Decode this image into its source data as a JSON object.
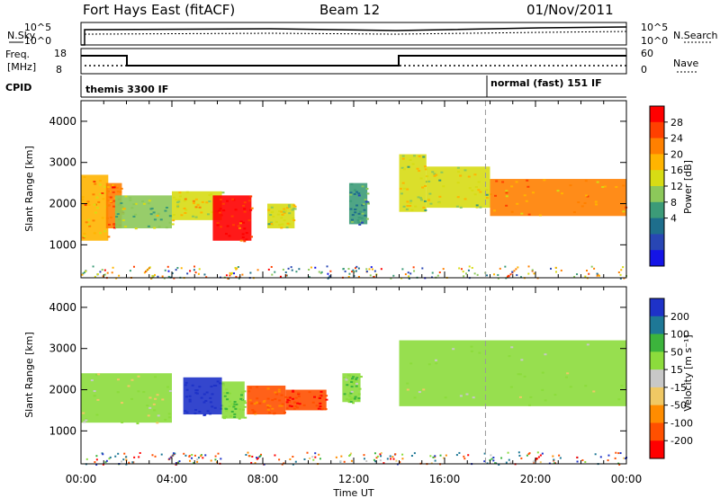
{
  "header": {
    "title": "Fort Hays East (fitACF)",
    "beam": "Beam 12",
    "date": "01/Nov/2011"
  },
  "panels": {
    "noise": {
      "left_label": "N.Sky",
      "right_label": "N.Search",
      "left_ticks": [
        "10^5",
        "10^0"
      ],
      "right_ticks": [
        "10^5",
        "10^0"
      ]
    },
    "freq": {
      "left_label_1": "Freq.",
      "left_label_2": "[MHz]",
      "right_label": "Nave",
      "left_ticks": [
        "18",
        "8"
      ],
      "right_ticks": [
        "60",
        "0"
      ]
    },
    "cpid": {
      "label": "CPID",
      "modes": [
        "themis 3300 IF",
        "normal (fast) 151 IF"
      ]
    }
  },
  "colorbars": {
    "power": {
      "title": "Power [dB]",
      "ticks": [
        "28",
        "24",
        "20",
        "16",
        "12",
        "8",
        "4"
      ],
      "colors": [
        "#ff0000",
        "#ff4000",
        "#ff8000",
        "#ffb400",
        "#d7dc14",
        "#8cc85a",
        "#3c9b78",
        "#1e6e8c",
        "#2846b4",
        "#1414e6"
      ]
    },
    "velocity": {
      "title": "Velocity [m s⁻¹]",
      "ticks": [
        "200",
        "100",
        "50",
        "15",
        "-15",
        "-50",
        "-100",
        "-200"
      ],
      "colors": [
        "#1e32c8",
        "#1e7896",
        "#3cb43c",
        "#8cdc3c",
        "#c8c8c8",
        "#f0c864",
        "#ff8c00",
        "#ff5000",
        "#ff0000"
      ]
    }
  },
  "chart_data": [
    {
      "type": "heatmap",
      "name": "power",
      "xlabel": "Time UT",
      "ylabel": "Slant Range [km]",
      "xlim": [
        0,
        24
      ],
      "ylim": [
        200,
        4500
      ],
      "yticks": [
        "1000",
        "2000",
        "3000",
        "4000"
      ],
      "xticks": [
        "00:00",
        "04:00",
        "08:00",
        "12:00",
        "16:00",
        "20:00",
        "00:00"
      ],
      "regions": [
        {
          "t0": 0.0,
          "t1": 1.2,
          "r0": 1100,
          "r1": 2700,
          "v": 20
        },
        {
          "t0": 1.1,
          "t1": 1.8,
          "r0": 1400,
          "r1": 2500,
          "v": 24
        },
        {
          "t0": 1.5,
          "t1": 4.0,
          "r0": 1400,
          "r1": 2200,
          "v": 14
        },
        {
          "t0": 4.0,
          "t1": 6.2,
          "r0": 1600,
          "r1": 2300,
          "v": 18
        },
        {
          "t0": 5.8,
          "t1": 7.5,
          "r0": 1100,
          "r1": 2200,
          "v": 28
        },
        {
          "t0": 8.2,
          "t1": 9.4,
          "r0": 1400,
          "r1": 2000,
          "v": 16
        },
        {
          "t0": 11.8,
          "t1": 12.6,
          "r0": 1500,
          "r1": 2500,
          "v": 10
        },
        {
          "t0": 14.0,
          "t1": 15.2,
          "r0": 1800,
          "r1": 3200,
          "v": 16
        },
        {
          "t0": 15.2,
          "t1": 18.0,
          "r0": 1900,
          "r1": 2900,
          "v": 16
        },
        {
          "t0": 18.0,
          "t1": 24.0,
          "r0": 1700,
          "r1": 2600,
          "v": 22
        }
      ]
    },
    {
      "type": "heatmap",
      "name": "velocity",
      "xlabel": "Time UT",
      "ylabel": "Slant Range [km]",
      "xlim": [
        0,
        24
      ],
      "ylim": [
        200,
        4500
      ],
      "yticks": [
        "1000",
        "2000",
        "3000",
        "4000"
      ],
      "xticks": [
        "00:00",
        "04:00",
        "08:00",
        "12:00",
        "16:00",
        "20:00",
        "00:00"
      ],
      "regions": [
        {
          "t0": 0.0,
          "t1": 4.0,
          "r0": 1200,
          "r1": 2400,
          "v": 0
        },
        {
          "t0": 4.5,
          "t1": 6.2,
          "r0": 1400,
          "r1": 2300,
          "v": 200
        },
        {
          "t0": 6.2,
          "t1": 7.2,
          "r0": 1300,
          "r1": 2200,
          "v": 30
        },
        {
          "t0": 7.3,
          "t1": 9.0,
          "r0": 1400,
          "r1": 2100,
          "v": -80
        },
        {
          "t0": 9.0,
          "t1": 10.8,
          "r0": 1500,
          "r1": 2000,
          "v": -150
        },
        {
          "t0": 11.5,
          "t1": 12.3,
          "r0": 1700,
          "r1": 2400,
          "v": 20
        },
        {
          "t0": 14.0,
          "t1": 24.0,
          "r0": 1600,
          "r1": 3200,
          "v": 0
        }
      ]
    }
  ]
}
